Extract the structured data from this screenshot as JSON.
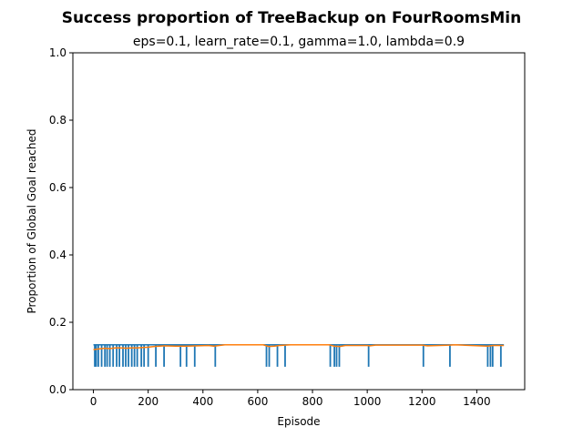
{
  "chart_data": {
    "type": "line",
    "title": "Success proportion of TreeBackup on FourRoomsMin",
    "subtitle": "eps=0.1, learn_rate=0.1, gamma=1.0, lambda=0.9",
    "xlabel": "Episode",
    "ylabel": "Proportion of Global Goal reached",
    "xlim": [
      -75,
      1575
    ],
    "ylim": [
      0.0,
      1.0
    ],
    "x_ticks": [
      0,
      200,
      400,
      600,
      800,
      1000,
      1200,
      1400
    ],
    "y_ticks": [
      0.0,
      0.2,
      0.4,
      0.6,
      0.8,
      1.0
    ],
    "y_tick_labels": [
      "0.0",
      "0.2",
      "0.4",
      "0.6",
      "0.8",
      "1.0"
    ],
    "grid": false,
    "series": [
      {
        "color": "#1f77b4",
        "kind": "per-episode",
        "base_value": 0.133,
        "x_range": [
          0,
          1499
        ],
        "dips": [
          {
            "episode": 5,
            "value": 0.068
          },
          {
            "episode": 10,
            "value": 0.068
          },
          {
            "episode": 18,
            "value": 0.068
          },
          {
            "episode": 30,
            "value": 0.068
          },
          {
            "episode": 42,
            "value": 0.068
          },
          {
            "episode": 50,
            "value": 0.068
          },
          {
            "episode": 60,
            "value": 0.068
          },
          {
            "episode": 72,
            "value": 0.068
          },
          {
            "episode": 85,
            "value": 0.068
          },
          {
            "episode": 95,
            "value": 0.068
          },
          {
            "episode": 108,
            "value": 0.068
          },
          {
            "episode": 118,
            "value": 0.068
          },
          {
            "episode": 128,
            "value": 0.068
          },
          {
            "episode": 140,
            "value": 0.068
          },
          {
            "episode": 150,
            "value": 0.068
          },
          {
            "episode": 160,
            "value": 0.068
          },
          {
            "episode": 175,
            "value": 0.068
          },
          {
            "episode": 185,
            "value": 0.068
          },
          {
            "episode": 200,
            "value": 0.068
          },
          {
            "episode": 228,
            "value": 0.068
          },
          {
            "episode": 258,
            "value": 0.068
          },
          {
            "episode": 318,
            "value": 0.068
          },
          {
            "episode": 340,
            "value": 0.068
          },
          {
            "episode": 370,
            "value": 0.068
          },
          {
            "episode": 445,
            "value": 0.068
          },
          {
            "episode": 632,
            "value": 0.068
          },
          {
            "episode": 642,
            "value": 0.068
          },
          {
            "episode": 672,
            "value": 0.068
          },
          {
            "episode": 700,
            "value": 0.068
          },
          {
            "episode": 865,
            "value": 0.068
          },
          {
            "episode": 880,
            "value": 0.068
          },
          {
            "episode": 888,
            "value": 0.068
          },
          {
            "episode": 898,
            "value": 0.068
          },
          {
            "episode": 1005,
            "value": 0.068
          },
          {
            "episode": 1205,
            "value": 0.068
          },
          {
            "episode": 1302,
            "value": 0.068
          },
          {
            "episode": 1440,
            "value": 0.068
          },
          {
            "episode": 1450,
            "value": 0.068
          },
          {
            "episode": 1458,
            "value": 0.068
          },
          {
            "episode": 1488,
            "value": 0.068
          }
        ]
      },
      {
        "color": "#ff7f0e",
        "kind": "moving-average",
        "x": [
          0,
          20,
          40,
          60,
          80,
          100,
          120,
          140,
          160,
          180,
          200,
          220,
          240,
          260,
          300,
          340,
          380,
          420,
          440,
          460,
          480,
          620,
          640,
          660,
          680,
          700,
          720,
          860,
          880,
          900,
          920,
          1000,
          1010,
          1030,
          1200,
          1220,
          1300,
          1320,
          1440,
          1460,
          1480,
          1499
        ],
        "y": [
          0.119,
          0.121,
          0.123,
          0.122,
          0.124,
          0.124,
          0.123,
          0.124,
          0.124,
          0.125,
          0.126,
          0.128,
          0.129,
          0.13,
          0.129,
          0.129,
          0.13,
          0.131,
          0.129,
          0.131,
          0.133,
          0.133,
          0.128,
          0.129,
          0.131,
          0.132,
          0.133,
          0.133,
          0.129,
          0.128,
          0.131,
          0.131,
          0.13,
          0.132,
          0.132,
          0.13,
          0.132,
          0.133,
          0.129,
          0.131,
          0.131,
          0.131
        ]
      }
    ]
  }
}
